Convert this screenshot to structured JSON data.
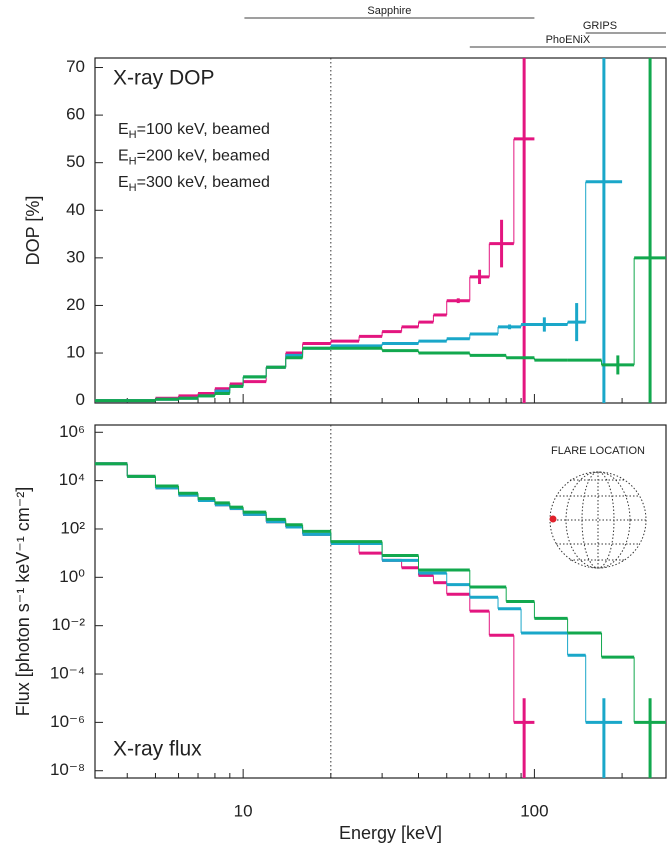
{
  "chart_data": [
    {
      "type": "step",
      "title": "X-ray DOP",
      "ylabel": "DOP [%]",
      "xscale": "log",
      "xlim": [
        3.1,
        283
      ],
      "xticks": [
        10,
        100
      ],
      "xminor": [
        4,
        5,
        6,
        7,
        8,
        9,
        20,
        30,
        40,
        50,
        60,
        70,
        80,
        90,
        200
      ],
      "ylim": [
        -0.5,
        72
      ],
      "yticks": [
        0,
        10,
        20,
        30,
        40,
        50,
        60,
        70
      ],
      "vline": 20,
      "instruments": [
        {
          "name": "Sapphire",
          "range": [
            10.1,
            100
          ]
        },
        {
          "name": "GRIPS",
          "range": [
            150,
            283
          ]
        },
        {
          "name": "PhoENiX",
          "range": [
            60,
            283
          ]
        }
      ],
      "series": [
        {
          "name": "EH=100 keV, beamed",
          "color": "#e3157f",
          "bins": [
            3.1,
            4,
            5,
            6,
            7,
            8,
            9,
            10,
            12,
            14,
            16,
            20,
            25,
            30,
            35,
            40,
            45,
            50,
            60,
            70,
            85,
            100
          ],
          "values": [
            0,
            0,
            0.5,
            1,
            1.5,
            2.5,
            3.5,
            4,
            7,
            10,
            12,
            12.5,
            13.5,
            14.5,
            15.5,
            16.5,
            18,
            21,
            26,
            33,
            55
          ],
          "errors": [
            null,
            null,
            null,
            null,
            null,
            null,
            null,
            null,
            null,
            null,
            null,
            null,
            null,
            null,
            null,
            null,
            null,
            0.5,
            1.5,
            5,
            80
          ]
        },
        {
          "name": "EH=200 keV, beamed",
          "color": "#1aa7c9",
          "bins": [
            3.1,
            4,
            5,
            6,
            7,
            8,
            9,
            10,
            12,
            14,
            16,
            20,
            30,
            40,
            50,
            60,
            75,
            90,
            130,
            150,
            200
          ],
          "values": [
            0,
            0,
            0.3,
            0.5,
            1,
            2,
            3,
            5,
            7,
            9.5,
            11,
            11.5,
            12,
            12.5,
            13,
            14,
            15.5,
            16,
            16.5,
            46
          ],
          "errors": [
            null,
            null,
            null,
            null,
            null,
            null,
            null,
            null,
            null,
            null,
            null,
            null,
            null,
            null,
            null,
            null,
            0.5,
            1.5,
            4,
            80
          ]
        },
        {
          "name": "EH=300 keV, beamed",
          "color": "#12a84e",
          "bins": [
            3.1,
            4,
            5,
            6,
            7,
            8,
            9,
            10,
            12,
            14,
            16,
            20,
            30,
            40,
            60,
            80,
            100,
            130,
            170,
            220,
            283
          ],
          "values": [
            0,
            0,
            0.3,
            0.5,
            1,
            1.5,
            3,
            5,
            7,
            9,
            11,
            11,
            10.5,
            10,
            9.5,
            9,
            8.5,
            8.5,
            7.5,
            30
          ],
          "errors": [
            null,
            null,
            null,
            null,
            null,
            null,
            null,
            null,
            null,
            null,
            null,
            null,
            null,
            null,
            null,
            null,
            null,
            null,
            2,
            80
          ]
        }
      ]
    },
    {
      "type": "step",
      "title": "X-ray flux",
      "ylabel": "Flux [photon s⁻¹ keV⁻¹ cm⁻²]",
      "xlabel": "Energy [keV]",
      "annotation": "FLARE LOCATION",
      "xscale": "log",
      "xlim": [
        3.1,
        283
      ],
      "xticks": [
        10,
        100
      ],
      "xminor": [
        4,
        5,
        6,
        7,
        8,
        9,
        20,
        30,
        40,
        50,
        60,
        70,
        80,
        90,
        200
      ],
      "yscale": "log",
      "ylim": [
        5e-09,
        2000000.0
      ],
      "yticks": [
        {
          "value": 1000000.0,
          "label": "10⁶"
        },
        {
          "value": 10000.0,
          "label": "10⁴"
        },
        {
          "value": 100,
          "label": "10²"
        },
        {
          "value": 1,
          "label": "10⁰"
        },
        {
          "value": 0.01,
          "label": "10⁻²"
        },
        {
          "value": 0.0001,
          "label": "10⁻⁴"
        },
        {
          "value": 1e-06,
          "label": "10⁻⁶"
        },
        {
          "value": 1e-08,
          "label": "10⁻⁸"
        }
      ],
      "vline": 20,
      "series": [
        {
          "color": "#e3157f",
          "bins": [
            3.1,
            4,
            5,
            6,
            7,
            8,
            9,
            10,
            12,
            14,
            16,
            20,
            25,
            30,
            35,
            40,
            45,
            50,
            60,
            70,
            85,
            100
          ],
          "values": [
            50000,
            15000,
            5000,
            2500,
            1500,
            1000,
            700,
            400,
            200,
            120,
            60,
            25,
            10,
            5,
            2.5,
            1.2,
            0.6,
            0.2,
            0.04,
            0.004,
            1e-06
          ],
          "errors": [
            null,
            null,
            null,
            null,
            null,
            null,
            null,
            null,
            null,
            null,
            null,
            null,
            null,
            null,
            null,
            null,
            null,
            null,
            null,
            null,
            9e-06
          ]
        },
        {
          "color": "#1aa7c9",
          "bins": [
            3.1,
            4,
            5,
            6,
            7,
            8,
            9,
            10,
            12,
            14,
            16,
            20,
            30,
            40,
            50,
            60,
            75,
            90,
            130,
            150,
            200
          ],
          "values": [
            50000,
            15000,
            5000,
            2500,
            1500,
            1000,
            700,
            400,
            200,
            120,
            60,
            25,
            5,
            1.5,
            0.5,
            0.15,
            0.05,
            0.005,
            0.0006,
            1e-06
          ],
          "errors": [
            null,
            null,
            null,
            null,
            null,
            null,
            null,
            null,
            null,
            null,
            null,
            null,
            null,
            null,
            null,
            null,
            null,
            null,
            null,
            9e-06
          ]
        },
        {
          "color": "#12a84e",
          "bins": [
            3.1,
            4,
            5,
            6,
            7,
            8,
            9,
            10,
            12,
            14,
            16,
            20,
            30,
            40,
            60,
            80,
            100,
            130,
            170,
            220,
            283
          ],
          "values": [
            50000,
            15000,
            6000,
            3000,
            1800,
            1200,
            800,
            500,
            250,
            150,
            80,
            30,
            8,
            2,
            0.4,
            0.1,
            0.02,
            0.005,
            0.0005,
            1e-06
          ],
          "errors": [
            null,
            null,
            null,
            null,
            null,
            null,
            null,
            null,
            null,
            null,
            null,
            null,
            null,
            null,
            null,
            null,
            null,
            null,
            null,
            9e-06
          ]
        }
      ]
    }
  ]
}
